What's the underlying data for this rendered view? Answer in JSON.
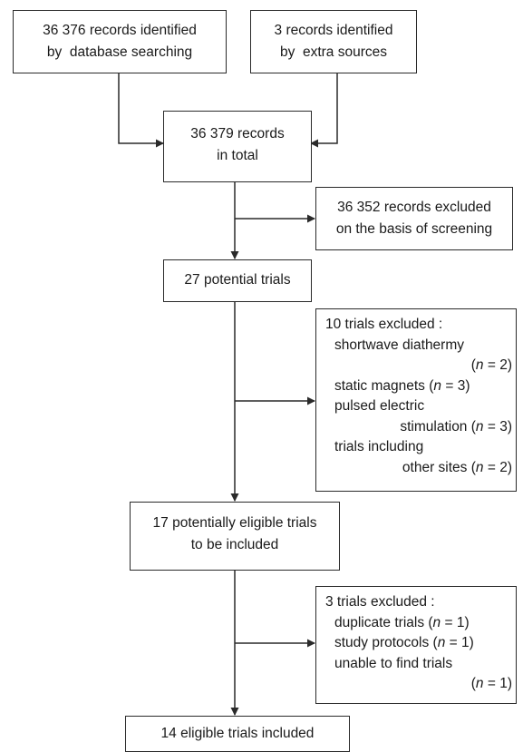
{
  "boxes": {
    "db_search": {
      "lines": [
        "36 376 records identified",
        "by  database searching"
      ]
    },
    "extra_sources": {
      "lines": [
        "3 records identified",
        "by  extra sources"
      ]
    },
    "total": {
      "lines": [
        "36 379 records",
        "in total"
      ]
    },
    "excluded_screening": {
      "lines": [
        "36 352 records excluded",
        "on the basis of screening"
      ]
    },
    "potential": {
      "lines": [
        "27 potential trials"
      ]
    },
    "excluded_10": {
      "title": "10 trials excluded :",
      "reasons": [
        {
          "label": "shortwave diathermy",
          "n": "2"
        },
        {
          "label": "static magnets",
          "n": "3"
        },
        {
          "label": "pulsed electric",
          "label2": "stimulation",
          "n": "3"
        },
        {
          "label": "trials including",
          "label2": "other sites",
          "n": "2"
        }
      ]
    },
    "eligible_17": {
      "lines": [
        "17 potentially eligible trials",
        "to be included"
      ]
    },
    "excluded_3": {
      "title": "3 trials excluded :",
      "reasons": [
        {
          "label": "duplicate trials",
          "n": "1"
        },
        {
          "label": "study protocols",
          "n": "1"
        },
        {
          "label": "unable to find trials",
          "n": "1"
        }
      ]
    },
    "final": {
      "lines": [
        "14 eligible trials included"
      ]
    }
  }
}
